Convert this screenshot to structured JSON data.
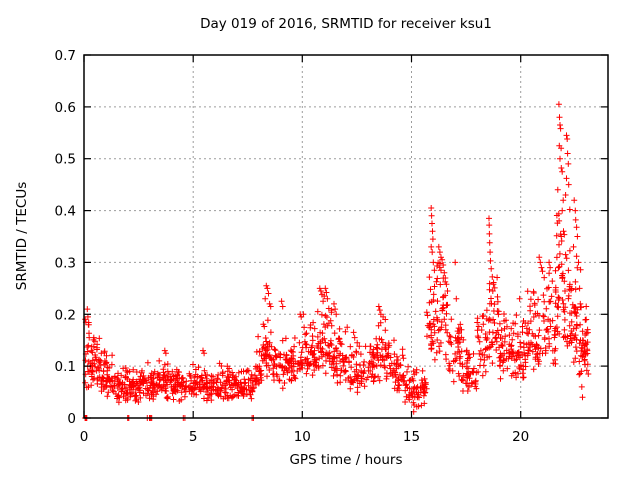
{
  "chart_data": {
    "type": "scatter",
    "title": "Day 019 of 2016, SRMTID for receiver ksu1",
    "xlabel": "GPS time / hours",
    "ylabel": "SRMTID / TECUs",
    "xlim": [
      0,
      24
    ],
    "ylim": [
      0,
      0.7
    ],
    "xticks": [
      0,
      5,
      10,
      15,
      20
    ],
    "yticks": [
      0,
      0.1,
      0.2,
      0.3,
      0.4,
      0.5,
      0.6,
      0.7
    ],
    "grid": true,
    "legend": "none",
    "marker": "plus",
    "colors": {
      "points": "#ff0000",
      "grid": "#9c9c9c",
      "border": "#000000",
      "background": "#ffffff"
    },
    "series": [
      {
        "name": "SRMTID",
        "bands_note": "dense scatter band summary per time interval: [t_start, t_end, n_points, y_min, y_center, y_max]",
        "bands": [
          [
            0.05,
            0.3,
            18,
            0.04,
            0.11,
            0.21
          ],
          [
            0.3,
            0.8,
            40,
            0.05,
            0.105,
            0.16
          ],
          [
            0.8,
            1.3,
            42,
            0.03,
            0.075,
            0.135
          ],
          [
            1.3,
            2.0,
            48,
            0.025,
            0.06,
            0.105
          ],
          [
            2.0,
            2.7,
            48,
            0.03,
            0.06,
            0.1
          ],
          [
            2.7,
            3.4,
            48,
            0.03,
            0.065,
            0.11
          ],
          [
            3.4,
            4.1,
            48,
            0.03,
            0.07,
            0.125
          ],
          [
            4.1,
            4.8,
            48,
            0.03,
            0.06,
            0.1
          ],
          [
            4.8,
            5.6,
            52,
            0.035,
            0.065,
            0.115
          ],
          [
            5.6,
            6.4,
            52,
            0.03,
            0.06,
            0.11
          ],
          [
            6.4,
            7.1,
            48,
            0.03,
            0.06,
            0.1
          ],
          [
            7.1,
            7.8,
            44,
            0.03,
            0.055,
            0.095
          ],
          [
            7.8,
            8.2,
            28,
            0.05,
            0.095,
            0.16
          ],
          [
            8.2,
            8.6,
            32,
            0.07,
            0.13,
            0.23
          ],
          [
            8.6,
            9.3,
            42,
            0.05,
            0.1,
            0.165
          ],
          [
            9.3,
            10.0,
            48,
            0.06,
            0.1,
            0.17
          ],
          [
            10.0,
            10.7,
            48,
            0.07,
            0.115,
            0.195
          ],
          [
            10.7,
            11.4,
            52,
            0.08,
            0.14,
            0.235
          ],
          [
            11.4,
            12.1,
            48,
            0.06,
            0.11,
            0.185
          ],
          [
            12.1,
            12.9,
            48,
            0.045,
            0.09,
            0.16
          ],
          [
            12.9,
            13.3,
            26,
            0.06,
            0.1,
            0.165
          ],
          [
            13.3,
            14.0,
            44,
            0.07,
            0.12,
            0.2
          ],
          [
            14.0,
            14.7,
            42,
            0.045,
            0.09,
            0.145
          ],
          [
            14.7,
            15.3,
            36,
            0.015,
            0.055,
            0.105
          ],
          [
            15.3,
            15.7,
            26,
            0.015,
            0.05,
            0.1
          ],
          [
            15.7,
            16.1,
            30,
            0.09,
            0.18,
            0.31
          ],
          [
            16.1,
            16.7,
            40,
            0.1,
            0.2,
            0.32
          ],
          [
            16.7,
            17.3,
            40,
            0.06,
            0.12,
            0.215
          ],
          [
            17.3,
            18.0,
            44,
            0.04,
            0.09,
            0.16
          ],
          [
            18.0,
            18.5,
            32,
            0.07,
            0.13,
            0.23
          ],
          [
            18.5,
            19.0,
            38,
            0.1,
            0.175,
            0.29
          ],
          [
            19.0,
            19.6,
            44,
            0.07,
            0.13,
            0.215
          ],
          [
            19.6,
            20.3,
            48,
            0.07,
            0.13,
            0.22
          ],
          [
            20.3,
            21.0,
            48,
            0.08,
            0.15,
            0.27
          ],
          [
            21.0,
            21.6,
            44,
            0.08,
            0.16,
            0.29
          ],
          [
            21.6,
            22.0,
            34,
            0.12,
            0.25,
            0.45
          ],
          [
            22.0,
            22.4,
            34,
            0.1,
            0.22,
            0.42
          ],
          [
            22.4,
            22.8,
            32,
            0.04,
            0.15,
            0.3
          ],
          [
            22.8,
            23.1,
            28,
            0.08,
            0.14,
            0.215
          ]
        ],
        "peaks_note": "individually visible points [t, y]",
        "peaks": [
          [
            0.15,
            0.21
          ],
          [
            0.18,
            0.195
          ],
          [
            0.2,
            0.18
          ],
          [
            0.22,
            0.18
          ],
          [
            0.24,
            0.155
          ],
          [
            0.45,
            0.155
          ],
          [
            0.5,
            0.148
          ],
          [
            0.6,
            0.142
          ],
          [
            3.7,
            0.13
          ],
          [
            3.75,
            0.125
          ],
          [
            5.45,
            0.13
          ],
          [
            5.5,
            0.125
          ],
          [
            8.3,
            0.23
          ],
          [
            8.35,
            0.255
          ],
          [
            8.4,
            0.25
          ],
          [
            8.45,
            0.24
          ],
          [
            8.5,
            0.22
          ],
          [
            8.55,
            0.215
          ],
          [
            9.05,
            0.225
          ],
          [
            9.1,
            0.215
          ],
          [
            9.9,
            0.2
          ],
          [
            9.95,
            0.195
          ],
          [
            10.05,
            0.2
          ],
          [
            10.8,
            0.25
          ],
          [
            10.85,
            0.245
          ],
          [
            10.9,
            0.238
          ],
          [
            10.95,
            0.225
          ],
          [
            11.0,
            0.235
          ],
          [
            11.05,
            0.25
          ],
          [
            11.1,
            0.242
          ],
          [
            11.15,
            0.23
          ],
          [
            11.45,
            0.22
          ],
          [
            11.5,
            0.21
          ],
          [
            11.55,
            0.2
          ],
          [
            12.35,
            0.165
          ],
          [
            12.4,
            0.155
          ],
          [
            13.5,
            0.215
          ],
          [
            13.55,
            0.208
          ],
          [
            13.6,
            0.2
          ],
          [
            13.7,
            0.195
          ],
          [
            13.8,
            0.19
          ],
          [
            14.2,
            0.15
          ],
          [
            15.1,
            0.012
          ],
          [
            15.12,
            0.025
          ],
          [
            15.15,
            0.04
          ],
          [
            15.9,
            0.405
          ],
          [
            15.92,
            0.39
          ],
          [
            15.94,
            0.375
          ],
          [
            15.96,
            0.36
          ],
          [
            15.98,
            0.345
          ],
          [
            15.9,
            0.33
          ],
          [
            15.95,
            0.32
          ],
          [
            16.0,
            0.3
          ],
          [
            16.05,
            0.285
          ],
          [
            16.25,
            0.33
          ],
          [
            16.3,
            0.32
          ],
          [
            16.35,
            0.31
          ],
          [
            16.3,
            0.298
          ],
          [
            16.4,
            0.305
          ],
          [
            16.45,
            0.295
          ],
          [
            16.35,
            0.285
          ],
          [
            16.5,
            0.28
          ],
          [
            16.55,
            0.27
          ],
          [
            16.6,
            0.258
          ],
          [
            16.65,
            0.245
          ],
          [
            17.0,
            0.3
          ],
          [
            17.05,
            0.23
          ],
          [
            18.55,
            0.385
          ],
          [
            18.56,
            0.372
          ],
          [
            18.57,
            0.355
          ],
          [
            18.58,
            0.338
          ],
          [
            18.6,
            0.32
          ],
          [
            18.62,
            0.303
          ],
          [
            18.65,
            0.288
          ],
          [
            18.7,
            0.272
          ],
          [
            18.75,
            0.258
          ],
          [
            19.95,
            0.23
          ],
          [
            20.85,
            0.31
          ],
          [
            20.9,
            0.3
          ],
          [
            20.95,
            0.29
          ],
          [
            21.0,
            0.283
          ],
          [
            21.3,
            0.3
          ],
          [
            21.35,
            0.29
          ],
          [
            21.75,
            0.605
          ],
          [
            21.78,
            0.58
          ],
          [
            21.8,
            0.565
          ],
          [
            21.83,
            0.558
          ],
          [
            21.77,
            0.525
          ],
          [
            21.85,
            0.52
          ],
          [
            21.8,
            0.5
          ],
          [
            21.86,
            0.482
          ],
          [
            21.9,
            0.475
          ],
          [
            21.7,
            0.44
          ],
          [
            21.95,
            0.42
          ],
          [
            21.9,
            0.4
          ],
          [
            21.76,
            0.38
          ],
          [
            21.96,
            0.36
          ],
          [
            21.86,
            0.35
          ],
          [
            22.1,
            0.545
          ],
          [
            22.13,
            0.538
          ],
          [
            22.15,
            0.51
          ],
          [
            22.18,
            0.49
          ],
          [
            22.1,
            0.462
          ],
          [
            22.2,
            0.45
          ],
          [
            22.06,
            0.43
          ],
          [
            22.25,
            0.402
          ],
          [
            22.45,
            0.42
          ],
          [
            22.5,
            0.4
          ],
          [
            22.52,
            0.382
          ],
          [
            22.56,
            0.368
          ],
          [
            22.6,
            0.35
          ],
          [
            22.42,
            0.33
          ],
          [
            22.56,
            0.312
          ],
          [
            22.65,
            0.3
          ],
          [
            22.7,
            0.25
          ],
          [
            22.73,
            0.22
          ],
          [
            22.72,
            0.18
          ],
          [
            22.74,
            0.15
          ],
          [
            22.76,
            0.12
          ],
          [
            22.78,
            0.09
          ],
          [
            22.8,
            0.06
          ],
          [
            22.83,
            0.04
          ],
          [
            22.95,
            0.16
          ],
          [
            23.0,
            0.215
          ],
          [
            23.0,
            0.19
          ],
          [
            23.05,
            0.13
          ]
        ],
        "zeros_note": "points lying on y = 0 axis, t values",
        "zeros": [
          0.05,
          0.07,
          0.09,
          0.11,
          0.13,
          2.0,
          2.05,
          2.9,
          3.0,
          3.05,
          3.1,
          4.55,
          4.62,
          7.7,
          7.76
        ]
      }
    ]
  }
}
